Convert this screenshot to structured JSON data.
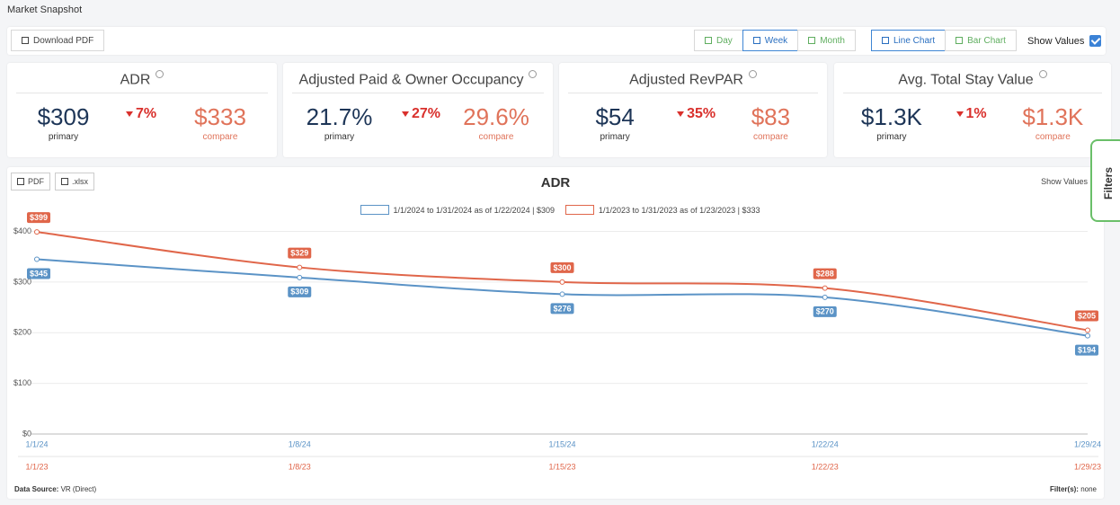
{
  "header": {
    "title": "Market Snapshot"
  },
  "toolbar": {
    "download": "Download PDF",
    "periods": [
      "Day",
      "Week",
      "Month"
    ],
    "active_period": "Week",
    "views": [
      "Line Chart",
      "Bar Chart"
    ],
    "active_view": "Line Chart",
    "show_values": "Show Values",
    "show_values_checked": true
  },
  "kpis": [
    {
      "title": "ADR",
      "primary": "$309",
      "primary_label": "primary",
      "change": "7%",
      "compare": "$333",
      "compare_label": "compare"
    },
    {
      "title": "Adjusted Paid & Owner Occupancy",
      "primary": "21.7%",
      "primary_label": "primary",
      "change": "27%",
      "compare": "29.6%",
      "compare_label": "compare"
    },
    {
      "title": "Adjusted RevPAR",
      "primary": "$54",
      "primary_label": "primary",
      "change": "35%",
      "compare": "$83",
      "compare_label": "compare"
    },
    {
      "title": "Avg. Total Stay Value",
      "primary": "$1.3K",
      "primary_label": "primary",
      "change": "1%",
      "compare": "$1.3K",
      "compare_label": "compare"
    }
  ],
  "chart_panel": {
    "buttons": [
      "PDF",
      ".xlsx"
    ],
    "show_values": "Show Values",
    "data_source_label": "Data Source:",
    "data_source": "VR (Direct)",
    "filters_label": "Filter(s):",
    "filters": "none"
  },
  "side_tab": "Filters",
  "chart_data": {
    "type": "line",
    "title": "ADR",
    "categories": [
      "1/1/24",
      "1/8/24",
      "1/15/24",
      "1/22/24",
      "1/29/24"
    ],
    "compare_categories": [
      "1/1/23",
      "1/8/23",
      "1/15/23",
      "1/22/23",
      "1/29/23"
    ],
    "series": [
      {
        "name": "1/1/2024 to 1/31/2024 as of 1/22/2024 | $309",
        "color": "#5b93c6",
        "values": [
          345,
          309,
          276,
          270,
          194
        ],
        "value_labels": [
          "$345",
          "$309",
          "$276",
          "$270",
          "$194"
        ]
      },
      {
        "name": "1/1/2023 to 1/31/2023 as of 1/23/2023 | $333",
        "color": "#e0664a",
        "values": [
          399,
          329,
          300,
          288,
          205
        ],
        "value_labels": [
          "$399",
          "$329",
          "$300",
          "$288",
          "$205"
        ]
      }
    ],
    "ylim": [
      0,
      440
    ],
    "yticks": [
      {
        "value": 0,
        "label": "$0"
      },
      {
        "value": 100,
        "label": "$100"
      },
      {
        "value": 200,
        "label": "$200"
      },
      {
        "value": 300,
        "label": "$300"
      },
      {
        "value": 400,
        "label": "$400"
      }
    ],
    "grid": true
  }
}
